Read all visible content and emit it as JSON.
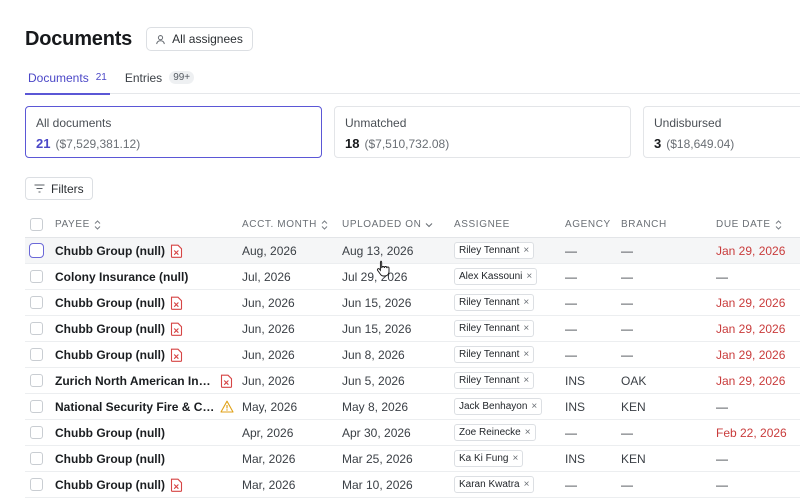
{
  "header": {
    "title": "Documents",
    "assignee_label": "All assignees"
  },
  "tabs": [
    {
      "label": "Documents",
      "count": "21",
      "active": true
    },
    {
      "label": "Entries",
      "count": "99+",
      "active": false
    }
  ],
  "cards": [
    {
      "label": "All documents",
      "count": "21",
      "amount": "($7,529,381.12)"
    },
    {
      "label": "Unmatched",
      "count": "18",
      "amount": "($7,510,732.08)"
    },
    {
      "label": "Undisbursed",
      "count": "3",
      "amount": "($18,649.04)"
    }
  ],
  "filters_label": "Filters",
  "columns": {
    "payee": "PAYEE",
    "acct_month": "ACCT. MONTH",
    "uploaded_on": "UPLOADED ON",
    "assignee": "ASSIGNEE",
    "agency": "AGENCY",
    "branch": "BRANCH",
    "due_date": "DUE DATE"
  },
  "rows": [
    {
      "payee": "Chubb Group (null)",
      "icon": "document-error-icon",
      "acct": "Aug, 2026",
      "uploaded": "Aug 13, 2026",
      "assignee": "Riley Tennant",
      "agency": "—",
      "branch": "—",
      "due": "Jan 29, 2026",
      "due_overdue": true
    },
    {
      "payee": "Colony Insurance (null)",
      "icon": "",
      "acct": "Jul, 2026",
      "uploaded": "Jul 29, 2026",
      "assignee": "Alex Kassouni",
      "agency": "—",
      "branch": "—",
      "due": "—",
      "due_overdue": false
    },
    {
      "payee": "Chubb Group (null)",
      "icon": "document-error-icon",
      "acct": "Jun, 2026",
      "uploaded": "Jun 15, 2026",
      "assignee": "Riley Tennant",
      "agency": "—",
      "branch": "—",
      "due": "Jan 29, 2026",
      "due_overdue": true
    },
    {
      "payee": "Chubb Group (null)",
      "icon": "document-error-icon",
      "acct": "Jun, 2026",
      "uploaded": "Jun 15, 2026",
      "assignee": "Riley Tennant",
      "agency": "—",
      "branch": "—",
      "due": "Jan 29, 2026",
      "due_overdue": true
    },
    {
      "payee": "Chubb Group (null)",
      "icon": "document-error-icon",
      "acct": "Jun, 2026",
      "uploaded": "Jun 8, 2026",
      "assignee": "Riley Tennant",
      "agency": "—",
      "branch": "—",
      "due": "Jan 29, 2026",
      "due_overdue": true
    },
    {
      "payee": "Zurich North American Insu...",
      "icon": "document-error-icon",
      "acct": "Jun, 2026",
      "uploaded": "Jun 5, 2026",
      "assignee": "Riley Tennant",
      "agency": "INS",
      "branch": "OAK",
      "due": "Jan 29, 2026",
      "due_overdue": true
    },
    {
      "payee": "National Security Fire & Cas...",
      "icon": "warning-icon",
      "acct": "May, 2026",
      "uploaded": "May 8, 2026",
      "assignee": "Jack Benhayon",
      "agency": "INS",
      "branch": "KEN",
      "due": "—",
      "due_overdue": false
    },
    {
      "payee": "Chubb Group (null)",
      "icon": "",
      "acct": "Apr, 2026",
      "uploaded": "Apr 30, 2026",
      "assignee": "Zoe Reinecke",
      "agency": "—",
      "branch": "—",
      "due": "Feb 22, 2026",
      "due_overdue": true
    },
    {
      "payee": "Chubb Group (null)",
      "icon": "",
      "acct": "Mar, 2026",
      "uploaded": "Mar 25, 2026",
      "assignee": "Ka Ki Fung",
      "agency": "INS",
      "branch": "KEN",
      "due": "—",
      "due_overdue": false
    },
    {
      "payee": "Chubb Group (null)",
      "icon": "document-error-icon",
      "acct": "Mar, 2026",
      "uploaded": "Mar 10, 2026",
      "assignee": "Karan Kwatra",
      "agency": "—",
      "branch": "—",
      "due": "—",
      "due_overdue": false
    }
  ],
  "colors": {
    "accent": "#5b57d6",
    "overdue": "#c93c3c",
    "doc_error": "#d64545",
    "warning": "#e0a21a"
  }
}
